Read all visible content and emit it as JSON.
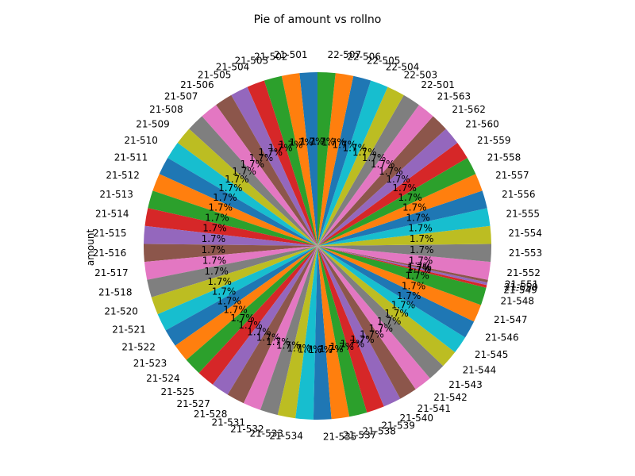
{
  "chart_data": {
    "type": "pie",
    "title": "Pie of amount vs rollno",
    "ylabel": "amount",
    "start_angle_deg": 90,
    "direction": "counterclockwise",
    "pct_format": "1.7%",
    "categories": [
      "21-501",
      "21-502",
      "21-503",
      "21-504",
      "21-505",
      "21-506",
      "21-507",
      "21-508",
      "21-509",
      "21-510",
      "21-511",
      "21-512",
      "21-513",
      "21-514",
      "21-515",
      "21-516",
      "21-517",
      "21-518",
      "21-520",
      "21-521",
      "21-522",
      "21-523",
      "21-524",
      "21-525",
      "21-527",
      "21-528",
      "21-531",
      "21-532",
      "21-533",
      "21-534",
      "21-535",
      "21-537",
      "21-538",
      "21-539",
      "21-540",
      "21-541",
      "21-542",
      "21-543",
      "21-544",
      "21-545",
      "21-546",
      "21-547",
      "21-548",
      "21-549",
      "21-550",
      "21-551",
      "21-552",
      "21-553",
      "21-554",
      "21-555",
      "21-556",
      "21-557",
      "21-558",
      "21-559",
      "21-560",
      "21-562",
      "21-563",
      "22-501",
      "22-503",
      "22-504",
      "22-505",
      "22-506",
      "22-507"
    ],
    "first_category": "21-501",
    "values": [
      1,
      1,
      1,
      1,
      1,
      1,
      1,
      1,
      1,
      1,
      1,
      1,
      1,
      1,
      1,
      1,
      1,
      1,
      1,
      1,
      1,
      1,
      1,
      1,
      1,
      1,
      1,
      1,
      1,
      1,
      1,
      1,
      1,
      1,
      1,
      1,
      1,
      1,
      1,
      1,
      1,
      1,
      1,
      0.15,
      0.15,
      0.15,
      1,
      1,
      1,
      1,
      1,
      1,
      1,
      1,
      1,
      1,
      1,
      1,
      1,
      1,
      1,
      1,
      1
    ],
    "colors": [
      "#1f77b4",
      "#ff7f0e",
      "#2ca02c",
      "#d62728",
      "#9467bd",
      "#8c564b",
      "#e377c2",
      "#7f7f7f",
      "#bcbd22",
      "#17becf"
    ]
  }
}
